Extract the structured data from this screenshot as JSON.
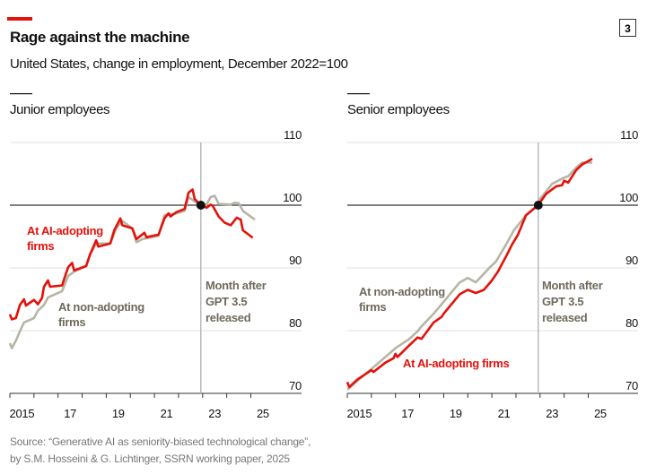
{
  "header": {
    "title": "Rage against the machine",
    "subtitle": "United States, change in employment, December 2022=100",
    "chart_number": "3"
  },
  "source": {
    "line1": "Source: “Generative AI as seniority-biased technological change”,",
    "line2": "by S.M. Hosseini & G. Lichtinger, SSRN working paper, 2025"
  },
  "colors": {
    "accent": "#e3120b",
    "ai_adopting": "#e3120b",
    "non_adopting": "#b7b5a5",
    "annotation_grey": "#6f6a5c",
    "baseline": "#333333",
    "grid": "#e0e0e0"
  },
  "chart_data": [
    {
      "type": "line",
      "title": "Junior employees",
      "ylim": [
        70,
        110
      ],
      "yticks": [
        "70",
        "80",
        "90",
        "100",
        "110"
      ],
      "xticks": [
        "2015",
        "17",
        "19",
        "21",
        "23",
        "25"
      ],
      "xlim": [
        "2015-01",
        "2026-04"
      ],
      "grid": true,
      "reference_value": 100,
      "event": {
        "date": "2023-01",
        "label": [
          "Month after",
          "GPT 3.5",
          "released"
        ]
      },
      "series": [
        {
          "name": "At AI-adopting firms",
          "label": [
            "At AI-adopting",
            "firms"
          ],
          "color": "#e3120b",
          "points": [
            [
              "2015-01",
              82.6
            ],
            [
              "2015-02",
              81.8
            ],
            [
              "2015-04",
              82
            ],
            [
              "2015-06",
              84.1
            ],
            [
              "2015-08",
              85
            ],
            [
              "2015-09",
              84
            ],
            [
              "2016-01",
              84.9
            ],
            [
              "2016-03",
              84.2
            ],
            [
              "2016-05",
              85.2
            ],
            [
              "2016-06",
              87
            ],
            [
              "2016-08",
              88
            ],
            [
              "2016-09",
              87
            ],
            [
              "2017-03",
              87.2
            ],
            [
              "2017-04",
              88.2
            ],
            [
              "2017-06",
              90.1
            ],
            [
              "2017-08",
              90.8
            ],
            [
              "2017-09",
              89.6
            ],
            [
              "2018-03",
              90.3
            ],
            [
              "2018-05",
              92.2
            ],
            [
              "2018-08",
              94.4
            ],
            [
              "2018-09",
              93.4
            ],
            [
              "2019-03",
              93.9
            ],
            [
              "2019-05",
              96
            ],
            [
              "2019-08",
              97.9
            ],
            [
              "2019-09",
              96.8
            ],
            [
              "2020-02",
              96.3
            ],
            [
              "2020-04",
              94.6
            ],
            [
              "2020-08",
              95.6
            ],
            [
              "2020-09",
              94.9
            ],
            [
              "2021-03",
              95.3
            ],
            [
              "2021-06",
              97.9
            ],
            [
              "2021-08",
              98.7
            ],
            [
              "2021-09",
              98.2
            ],
            [
              "2021-12",
              98.9
            ],
            [
              "2022-04",
              99.4
            ],
            [
              "2022-06",
              102
            ],
            [
              "2022-08",
              102.5
            ],
            [
              "2022-09",
              101
            ],
            [
              "2022-12",
              100
            ],
            [
              "2023-03",
              99.6
            ],
            [
              "2023-05",
              100.1
            ],
            [
              "2023-06",
              99.9
            ],
            [
              "2023-09",
              98.2
            ],
            [
              "2023-12",
              97.2
            ],
            [
              "2024-03",
              96.8
            ],
            [
              "2024-06",
              98
            ],
            [
              "2024-08",
              97.7
            ],
            [
              "2024-09",
              96
            ],
            [
              "2025-02",
              94.8
            ]
          ]
        },
        {
          "name": "At non-adopting firms",
          "label": [
            "At non-adopting",
            "firms"
          ],
          "color": "#b7b5a5",
          "points": [
            [
              "2015-01",
              78
            ],
            [
              "2015-02",
              77.2
            ],
            [
              "2015-04",
              78.4
            ],
            [
              "2015-06",
              79.9
            ],
            [
              "2015-08",
              81.3
            ],
            [
              "2016-01",
              82
            ],
            [
              "2016-03",
              83.2
            ],
            [
              "2016-06",
              84.1
            ],
            [
              "2016-08",
              85.3
            ],
            [
              "2017-03",
              86.3
            ],
            [
              "2017-06",
              88.7
            ],
            [
              "2017-09",
              89.4
            ],
            [
              "2018-03",
              90.3
            ],
            [
              "2018-05",
              92.2
            ],
            [
              "2018-08",
              93.9
            ],
            [
              "2019-03",
              93.9
            ],
            [
              "2019-06",
              96.3
            ],
            [
              "2019-09",
              97.5
            ],
            [
              "2020-02",
              96.3
            ],
            [
              "2020-04",
              94.1
            ],
            [
              "2020-07",
              94.6
            ],
            [
              "2021-03",
              95.1
            ],
            [
              "2021-06",
              98.4
            ],
            [
              "2021-12",
              98.7
            ],
            [
              "2022-04",
              99.1
            ],
            [
              "2022-06",
              101.3
            ],
            [
              "2022-09",
              100.6
            ],
            [
              "2022-12",
              100
            ],
            [
              "2023-03",
              100.1
            ],
            [
              "2023-05",
              101.3
            ],
            [
              "2023-07",
              101.5
            ],
            [
              "2023-09",
              100.2
            ],
            [
              "2024-03",
              100.1
            ],
            [
              "2024-05",
              100.4
            ],
            [
              "2024-07",
              100.3
            ],
            [
              "2024-09",
              99.1
            ],
            [
              "2025-03",
              97.7
            ]
          ]
        }
      ]
    },
    {
      "type": "line",
      "title": "Senior employees",
      "ylim": [
        70,
        110
      ],
      "yticks": [
        "70",
        "80",
        "90",
        "100",
        "110"
      ],
      "xticks": [
        "2015",
        "17",
        "19",
        "21",
        "23",
        "25"
      ],
      "xlim": [
        "2015-01",
        "2026-04"
      ],
      "grid": true,
      "reference_value": 100,
      "event": {
        "date": "2023-01",
        "label": [
          "Month after",
          "GPT 3.5",
          "released"
        ]
      },
      "series": [
        {
          "name": "At AI-adopting firms",
          "label": [
            "At AI-adopting firms"
          ],
          "color": "#e3120b",
          "points": [
            [
              "2015-01",
              71.8
            ],
            [
              "2015-02",
              71
            ],
            [
              "2015-06",
              72.2
            ],
            [
              "2016-01",
              73.7
            ],
            [
              "2016-02",
              73.4
            ],
            [
              "2016-08",
              74.9
            ],
            [
              "2016-12",
              75.6
            ],
            [
              "2017-01",
              76.3
            ],
            [
              "2017-02",
              75.8
            ],
            [
              "2017-08",
              77.7
            ],
            [
              "2017-12",
              78.9
            ],
            [
              "2018-02",
              78.7
            ],
            [
              "2018-08",
              81.3
            ],
            [
              "2018-12",
              82.2
            ],
            [
              "2019-01",
              82.7
            ],
            [
              "2019-09",
              85.8
            ],
            [
              "2020-01",
              86.5
            ],
            [
              "2020-05",
              86
            ],
            [
              "2020-09",
              86.5
            ],
            [
              "2021-01",
              88
            ],
            [
              "2021-04",
              89.4
            ],
            [
              "2021-08",
              91.8
            ],
            [
              "2021-11",
              93.7
            ],
            [
              "2022-02",
              95.3
            ],
            [
              "2022-06",
              98.4
            ],
            [
              "2022-12",
              100
            ],
            [
              "2023-04",
              101.8
            ],
            [
              "2023-09",
              103
            ],
            [
              "2023-12",
              103.2
            ],
            [
              "2024-01",
              103.9
            ],
            [
              "2024-03",
              103.6
            ],
            [
              "2024-07",
              105.6
            ],
            [
              "2024-10",
              106.5
            ],
            [
              "2025-03",
              107.4
            ]
          ]
        },
        {
          "name": "At non-adopting firms",
          "label": [
            "At non-adopting",
            "firms"
          ],
          "color": "#b7b5a5",
          "points": [
            [
              "2015-01",
              70.6
            ],
            [
              "2015-06",
              72
            ],
            [
              "2016-01",
              73.9
            ],
            [
              "2016-08",
              75.8
            ],
            [
              "2017-01",
              77.2
            ],
            [
              "2017-08",
              78.7
            ],
            [
              "2017-12",
              79.9
            ],
            [
              "2018-02",
              80.7
            ],
            [
              "2018-08",
              82.7
            ],
            [
              "2019-01",
              84.6
            ],
            [
              "2019-09",
              87.7
            ],
            [
              "2020-01",
              88.4
            ],
            [
              "2020-05",
              87.7
            ],
            [
              "2020-12",
              90.1
            ],
            [
              "2021-03",
              91
            ],
            [
              "2021-08",
              93.7
            ],
            [
              "2021-12",
              96
            ],
            [
              "2022-06",
              98.4
            ],
            [
              "2022-12",
              100
            ],
            [
              "2023-01",
              101
            ],
            [
              "2023-07",
              103.4
            ],
            [
              "2024-01",
              104.4
            ],
            [
              "2024-03",
              104.6
            ],
            [
              "2024-07",
              106
            ],
            [
              "2024-10",
              106.8
            ],
            [
              "2025-03",
              106.8
            ]
          ]
        }
      ]
    }
  ]
}
